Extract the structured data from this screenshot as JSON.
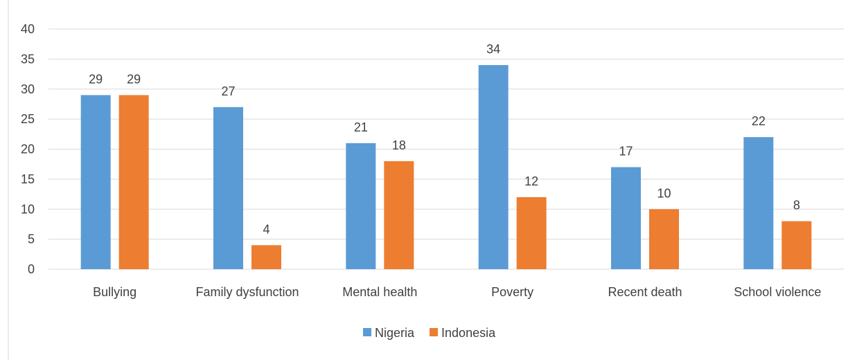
{
  "chart_data": {
    "type": "bar",
    "categories": [
      "Bullying",
      "Family dysfunction",
      "Mental health",
      "Poverty",
      "Recent death",
      "School violence"
    ],
    "series": [
      {
        "name": "Nigeria",
        "values": [
          29,
          27,
          21,
          34,
          17,
          22
        ],
        "color": "#5b9bd5"
      },
      {
        "name": "Indonesia",
        "values": [
          29,
          4,
          18,
          12,
          10,
          8
        ],
        "color": "#ed7d31"
      }
    ],
    "ylim": [
      0,
      40
    ],
    "yticks": [
      0,
      5,
      10,
      15,
      20,
      25,
      30,
      35,
      40
    ],
    "grid": true,
    "legend": "bottom",
    "data_labels": true
  }
}
